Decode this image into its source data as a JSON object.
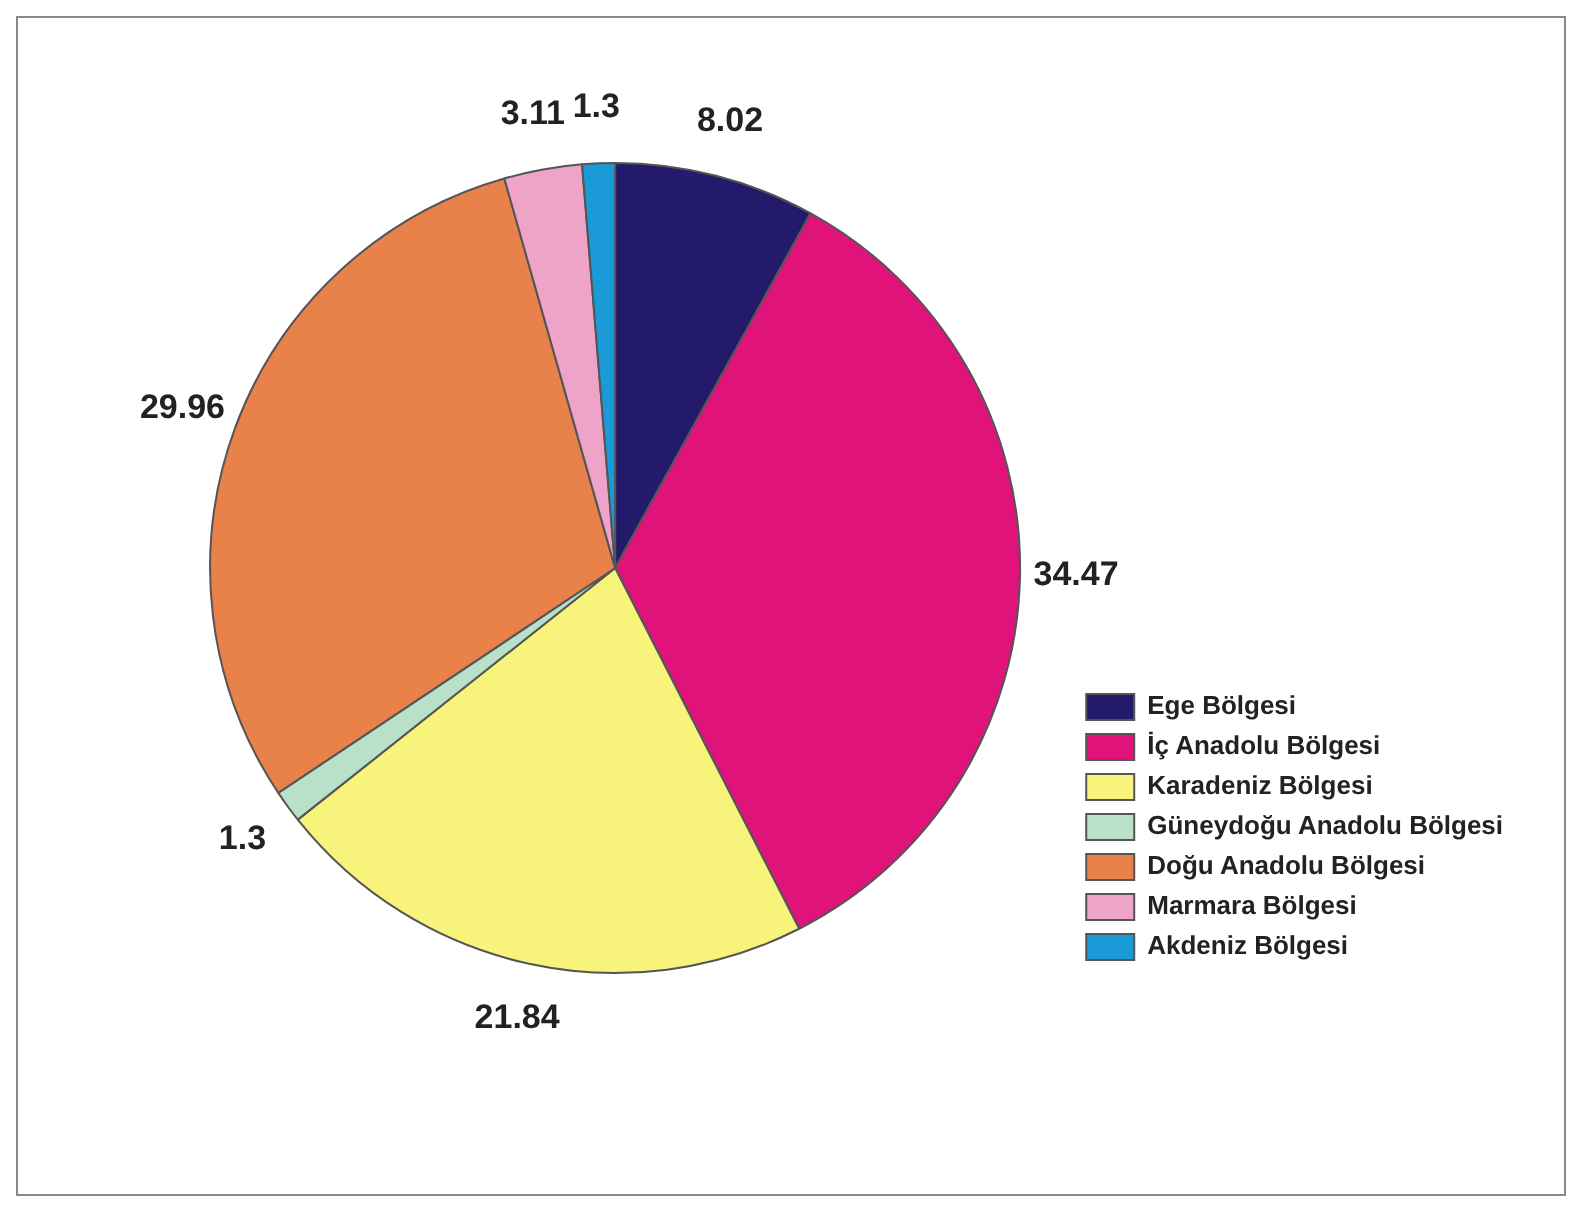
{
  "chart_data": {
    "type": "pie",
    "categories": [
      "Ege Bölgesi",
      "İç Anadolu Bölgesi",
      "Karadeniz Bölgesi",
      "Güneydoğu Anadolu Bölgesi",
      "Doğu Anadolu Bölgesi",
      "Marmara Bölgesi",
      "Akdeniz Bölgesi"
    ],
    "values": [
      8.02,
      34.47,
      21.84,
      1.3,
      29.96,
      3.11,
      1.3
    ],
    "colors": [
      "#241a6b",
      "#e0137a",
      "#f8f37a",
      "#b9e0c8",
      "#e8814a",
      "#eea3c8",
      "#1a9ad6"
    ],
    "data_labels": true,
    "legend": "bottom right"
  }
}
